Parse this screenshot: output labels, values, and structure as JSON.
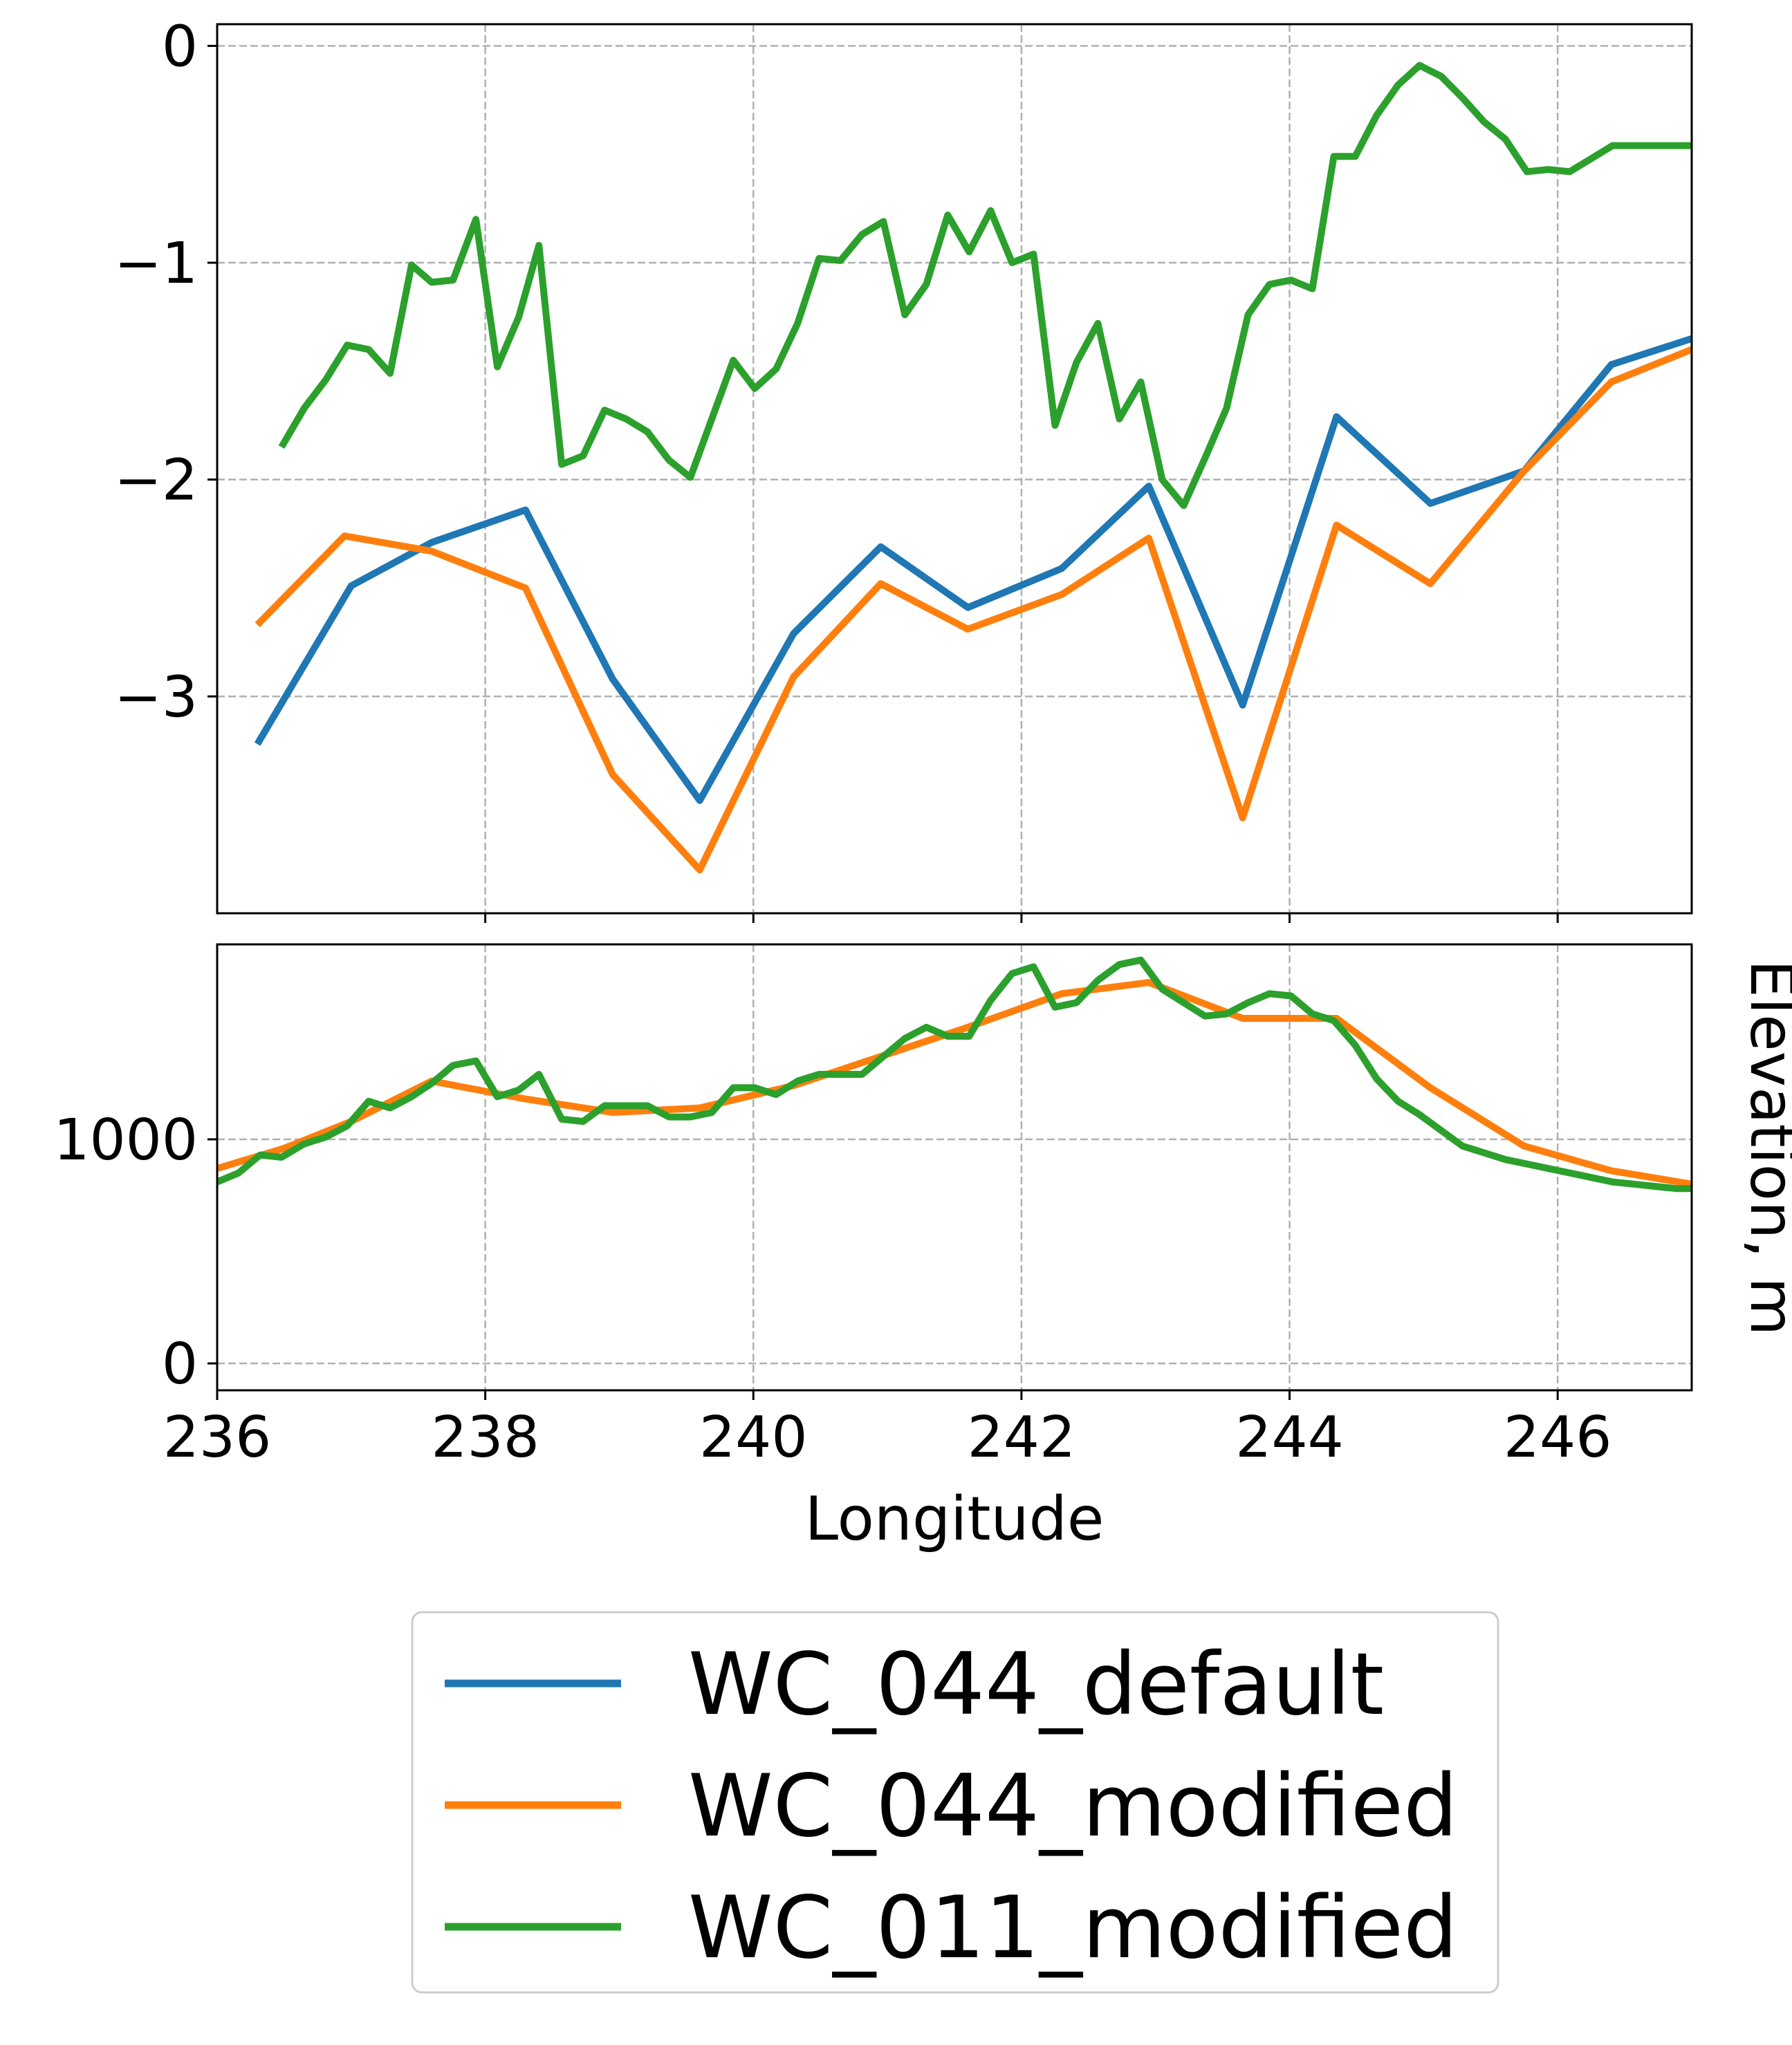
{
  "chart_data": [
    {
      "type": "line",
      "panel": "top",
      "title": "",
      "xlabel": "",
      "ylabel": "",
      "xlim": [
        236,
        247
      ],
      "ylim": [
        -4,
        0.1
      ],
      "xticks": [
        238,
        240,
        242,
        244,
        246
      ],
      "yticks": [
        0,
        -1,
        -2,
        -3
      ],
      "ytick_labels": [
        "0",
        "−1",
        "−2",
        "−3"
      ],
      "grid": true,
      "series": [
        {
          "name": "WC_044_default",
          "color": "#1f77b4",
          "x": [
            236.3,
            237.0,
            237.6,
            238.3,
            238.95,
            239.6,
            240.3,
            240.95,
            241.6,
            242.3,
            242.95,
            243.65,
            244.35,
            245.05,
            245.75,
            246.4,
            247.0
          ],
          "y": [
            -3.22,
            -2.49,
            -2.29,
            -2.14,
            -2.92,
            -3.48,
            -2.71,
            -2.31,
            -2.59,
            -2.41,
            -2.03,
            -3.04,
            -1.71,
            -2.11,
            -1.96,
            -1.47,
            -1.35
          ]
        },
        {
          "name": "WC_044_modified",
          "color": "#ff7f0e",
          "x": [
            236.3,
            236.95,
            237.6,
            238.3,
            238.95,
            239.6,
            240.3,
            240.95,
            241.6,
            242.3,
            242.95,
            243.65,
            244.35,
            245.05,
            245.75,
            246.4,
            247.0
          ],
          "y": [
            -2.67,
            -2.26,
            -2.33,
            -2.5,
            -3.36,
            -3.8,
            -2.91,
            -2.48,
            -2.69,
            -2.53,
            -2.27,
            -3.56,
            -2.21,
            -2.48,
            -1.96,
            -1.55,
            -1.4
          ]
        },
        {
          "name": "WC_011_modified",
          "color": "#2ca02c",
          "x": [
            236.48,
            236.65,
            236.81,
            236.97,
            237.13,
            237.29,
            237.45,
            237.6,
            237.76,
            237.93,
            238.09,
            238.25,
            238.4,
            238.57,
            238.73,
            238.89,
            239.05,
            239.21,
            239.37,
            239.53,
            239.69,
            239.85,
            240.01,
            240.17,
            240.33,
            240.49,
            240.65,
            240.81,
            240.97,
            241.13,
            241.29,
            241.45,
            241.61,
            241.77,
            241.93,
            242.09,
            242.25,
            242.41,
            242.57,
            242.73,
            242.89,
            243.05,
            243.21,
            243.37,
            243.53,
            243.69,
            243.85,
            244.01,
            244.17,
            244.33,
            244.49,
            244.65,
            244.81,
            244.97,
            245.13,
            245.29,
            245.45,
            245.61,
            245.77,
            245.93,
            246.09,
            246.25,
            246.41,
            246.57,
            246.73,
            246.89,
            247.0
          ],
          "y": [
            -1.85,
            -1.67,
            -1.54,
            -1.38,
            -1.4,
            -1.51,
            -1.01,
            -1.09,
            -1.08,
            -0.8,
            -1.48,
            -1.25,
            -0.92,
            -1.93,
            -1.89,
            -1.68,
            -1.72,
            -1.78,
            -1.91,
            -1.99,
            -1.72,
            -1.45,
            -1.58,
            -1.49,
            -1.28,
            -0.98,
            -0.99,
            -0.87,
            -0.81,
            -1.24,
            -1.1,
            -0.78,
            -0.95,
            -0.76,
            -1.0,
            -0.96,
            -1.75,
            -1.46,
            -1.28,
            -1.72,
            -1.55,
            -2.0,
            -2.12,
            -1.9,
            -1.67,
            -1.24,
            -1.1,
            -1.08,
            -1.12,
            -0.51,
            -0.51,
            -0.32,
            -0.18,
            -0.09,
            -0.14,
            -0.24,
            -0.35,
            -0.43,
            -0.58,
            -0.57,
            -0.58,
            -0.52,
            -0.46,
            -0.46,
            -0.46,
            -0.46,
            -0.46
          ]
        }
      ]
    },
    {
      "type": "line",
      "panel": "bottom",
      "title": "",
      "xlabel": "Longitude",
      "ylabel": "Elevation, m",
      "xlim": [
        236,
        247
      ],
      "ylim": [
        -120,
        1870
      ],
      "xticks": [
        236,
        238,
        240,
        242,
        244,
        246
      ],
      "xtick_labels": [
        "236",
        "238",
        "240",
        "242",
        "244",
        "246"
      ],
      "yticks": [
        0,
        1000
      ],
      "ytick_labels": [
        "0",
        "1000"
      ],
      "grid": true,
      "series": [
        {
          "name": "WC_044_modified",
          "color": "#ff7f0e",
          "x": [
            236.0,
            236.5,
            237.0,
            237.6,
            238.3,
            238.95,
            239.6,
            240.3,
            240.95,
            241.6,
            242.3,
            242.95,
            243.65,
            244.35,
            245.05,
            245.75,
            246.4,
            247.0
          ],
          "y": [
            870,
            960,
            1080,
            1260,
            1180,
            1120,
            1140,
            1240,
            1370,
            1500,
            1650,
            1700,
            1540,
            1540,
            1230,
            970,
            860,
            800
          ]
        },
        {
          "name": "WC_011_modified",
          "color": "#2ca02c",
          "x": [
            236.0,
            236.16,
            236.32,
            236.48,
            236.65,
            236.81,
            236.97,
            237.13,
            237.29,
            237.45,
            237.6,
            237.76,
            237.93,
            238.09,
            238.25,
            238.4,
            238.57,
            238.73,
            238.89,
            239.05,
            239.21,
            239.37,
            239.53,
            239.69,
            239.85,
            240.01,
            240.17,
            240.33,
            240.49,
            240.65,
            240.81,
            240.97,
            241.13,
            241.29,
            241.45,
            241.61,
            241.77,
            241.93,
            242.09,
            242.25,
            242.41,
            242.57,
            242.73,
            242.89,
            243.05,
            243.21,
            243.37,
            243.53,
            243.69,
            243.85,
            244.01,
            244.17,
            244.33,
            244.49,
            244.65,
            244.81,
            244.97,
            245.13,
            245.29,
            245.45,
            245.61,
            245.77,
            245.93,
            246.09,
            246.25,
            246.41,
            246.57,
            246.73,
            246.89,
            247.0
          ],
          "y": [
            810,
            850,
            930,
            920,
            980,
            1010,
            1060,
            1170,
            1140,
            1190,
            1250,
            1330,
            1350,
            1190,
            1220,
            1290,
            1090,
            1080,
            1150,
            1150,
            1150,
            1100,
            1100,
            1120,
            1230,
            1230,
            1200,
            1260,
            1290,
            1290,
            1290,
            1370,
            1450,
            1500,
            1460,
            1460,
            1620,
            1740,
            1770,
            1590,
            1610,
            1710,
            1780,
            1800,
            1670,
            1610,
            1550,
            1560,
            1610,
            1650,
            1640,
            1560,
            1530,
            1420,
            1270,
            1170,
            1110,
            1040,
            970,
            940,
            910,
            890,
            870,
            850,
            830,
            810,
            800,
            790,
            780,
            780
          ]
        }
      ]
    }
  ],
  "legend": {
    "placement": "bottom-center",
    "entries": [
      {
        "label": "WC_044_default",
        "color": "#1f77b4"
      },
      {
        "label": "WC_044_modified",
        "color": "#ff7f0e"
      },
      {
        "label": "WC_011_modified",
        "color": "#2ca02c"
      }
    ]
  }
}
